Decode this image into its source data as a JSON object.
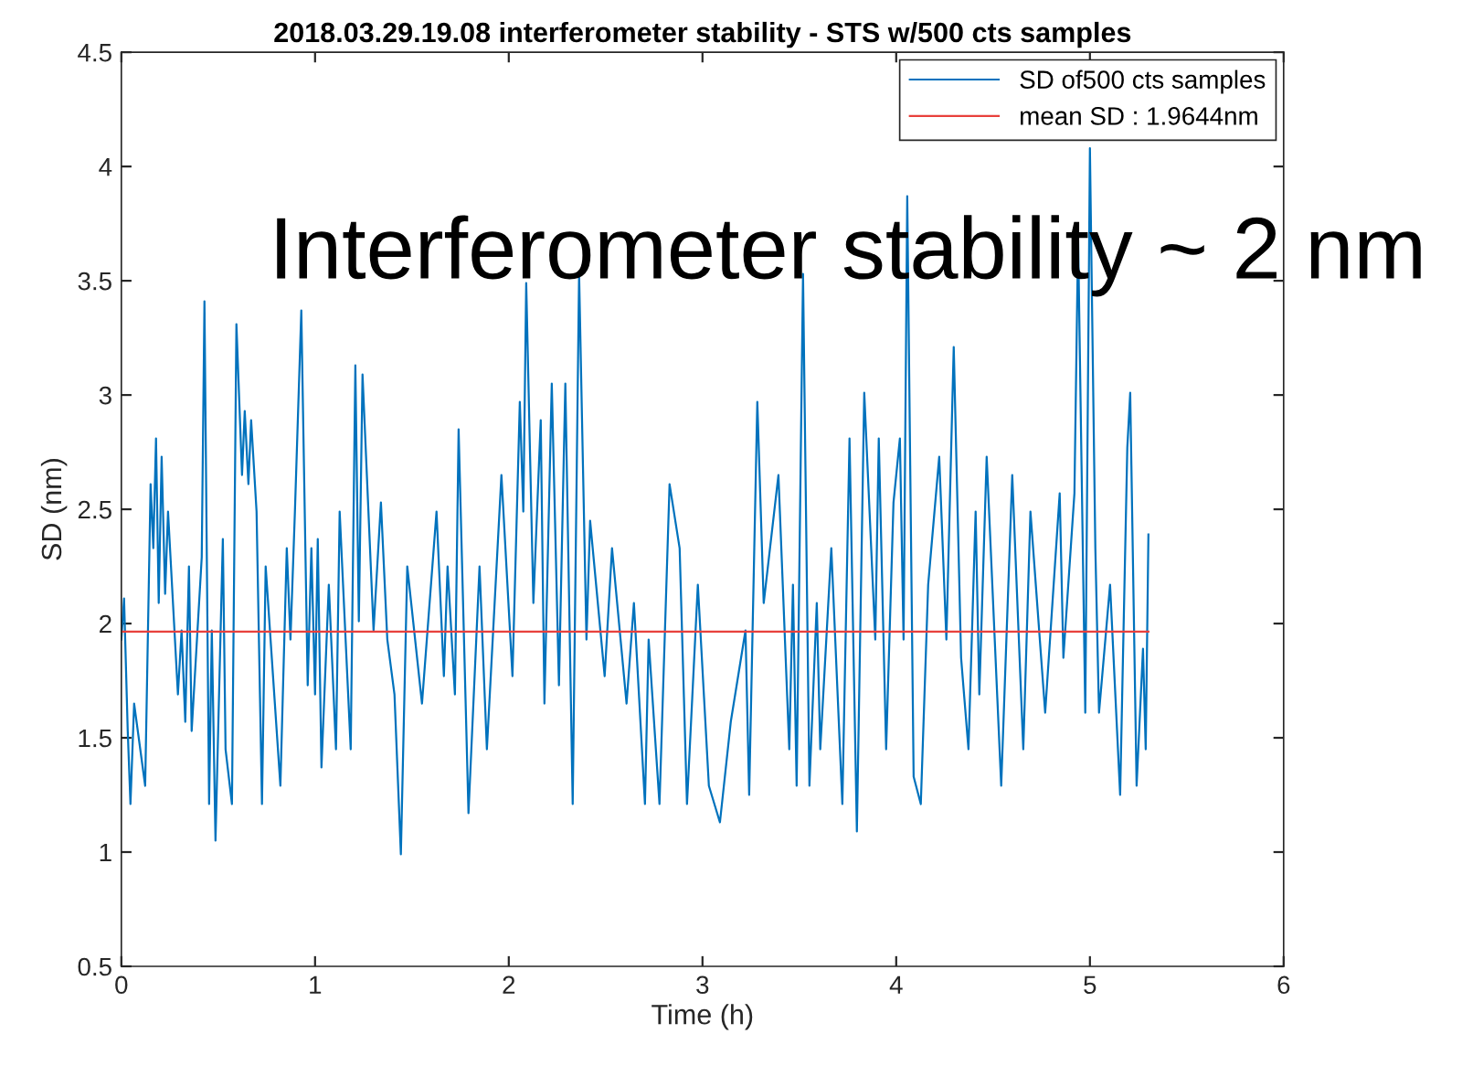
{
  "chart_data": {
    "type": "line",
    "title": "2018.03.29.19.08 interferometer stability - STS w/500 cts samples",
    "xlabel": "Time (h)",
    "ylabel": "SD (nm)",
    "xlim": [
      0,
      6
    ],
    "ylim": [
      0.5,
      4.5
    ],
    "xticks": [
      0,
      1,
      2,
      3,
      4,
      5,
      6
    ],
    "yticks": [
      0.5,
      1,
      1.5,
      2,
      2.5,
      3,
      3.5,
      4,
      4.5
    ],
    "legend": "top right",
    "annotations": [
      "Interferometer stability ~ 2 nm"
    ],
    "series": [
      {
        "name": "SD of500 cts samples",
        "color": "#0072bd",
        "x": [
          0,
          0.014,
          0.033,
          0.047,
          0.066,
          0.123,
          0.151,
          0.165,
          0.179,
          0.193,
          0.208,
          0.226,
          0.241,
          0.292,
          0.311,
          0.33,
          0.349,
          0.363,
          0.415,
          0.429,
          0.453,
          0.467,
          0.486,
          0.524,
          0.538,
          0.571,
          0.594,
          0.623,
          0.637,
          0.656,
          0.67,
          0.698,
          0.726,
          0.745,
          0.821,
          0.854,
          0.873,
          0.896,
          0.929,
          0.962,
          0.981,
          1.0,
          1.014,
          1.033,
          1.071,
          1.108,
          1.127,
          1.184,
          1.208,
          1.226,
          1.245,
          1.302,
          1.34,
          1.373,
          1.41,
          1.443,
          1.476,
          1.552,
          1.627,
          1.665,
          1.684,
          1.722,
          1.741,
          1.792,
          1.849,
          1.887,
          1.962,
          2.019,
          2.057,
          2.075,
          2.09,
          2.127,
          2.165,
          2.184,
          2.222,
          2.259,
          2.292,
          2.33,
          2.363,
          2.401,
          2.42,
          2.495,
          2.533,
          2.608,
          2.646,
          2.703,
          2.722,
          2.778,
          2.83,
          2.882,
          2.92,
          2.976,
          3.033,
          3.09,
          3.146,
          3.222,
          3.241,
          3.283,
          3.316,
          3.392,
          3.448,
          3.467,
          3.486,
          3.519,
          3.552,
          3.59,
          3.608,
          3.665,
          3.722,
          3.759,
          3.797,
          3.835,
          3.892,
          3.91,
          3.948,
          3.986,
          4.019,
          4.038,
          4.057,
          4.09,
          4.127,
          4.165,
          4.222,
          4.259,
          4.297,
          4.335,
          4.373,
          4.41,
          4.429,
          4.467,
          4.542,
          4.599,
          4.656,
          4.693,
          4.769,
          4.844,
          4.863,
          4.92,
          4.939,
          4.976,
          5.0,
          5.028,
          5.047,
          5.104,
          5.156,
          5.193,
          5.208,
          5.241,
          5.274,
          5.288,
          5.302
        ],
        "values": [
          1.93,
          2.11,
          1.53,
          1.21,
          1.65,
          1.29,
          2.61,
          2.33,
          2.81,
          2.09,
          2.73,
          2.13,
          2.49,
          1.69,
          1.97,
          1.57,
          2.25,
          1.53,
          2.29,
          3.41,
          1.21,
          1.97,
          1.05,
          2.37,
          1.45,
          1.21,
          3.31,
          2.65,
          2.93,
          2.61,
          2.89,
          2.49,
          1.21,
          2.25,
          1.29,
          2.33,
          1.93,
          2.49,
          3.37,
          1.73,
          2.33,
          1.69,
          2.37,
          1.37,
          2.17,
          1.45,
          2.49,
          1.45,
          3.13,
          2.01,
          3.09,
          1.97,
          2.53,
          1.93,
          1.69,
          0.99,
          2.25,
          1.65,
          2.49,
          1.77,
          2.25,
          1.69,
          2.85,
          1.17,
          2.25,
          1.45,
          2.65,
          1.77,
          2.97,
          2.49,
          3.49,
          2.09,
          2.89,
          1.65,
          3.05,
          1.73,
          3.05,
          1.21,
          3.53,
          1.93,
          2.45,
          1.77,
          2.33,
          1.65,
          2.09,
          1.21,
          1.93,
          1.21,
          2.61,
          2.33,
          1.21,
          2.17,
          1.29,
          1.13,
          1.57,
          1.97,
          1.25,
          2.97,
          2.09,
          2.65,
          1.45,
          2.17,
          1.29,
          3.53,
          1.29,
          2.09,
          1.45,
          2.33,
          1.21,
          2.81,
          1.09,
          3.01,
          1.93,
          2.81,
          1.45,
          2.53,
          2.81,
          1.93,
          3.87,
          1.33,
          1.21,
          2.17,
          2.73,
          1.93,
          3.21,
          1.85,
          1.45,
          2.49,
          1.69,
          2.73,
          1.29,
          2.65,
          1.45,
          2.49,
          1.61,
          2.57,
          1.85,
          2.57,
          3.69,
          1.61,
          4.08,
          2.33,
          1.61,
          2.17,
          1.25,
          2.77,
          3.01,
          1.29,
          1.89,
          1.45,
          2.39
        ]
      },
      {
        "name": "mean SD : 1.9644nm",
        "color": "#e8413c",
        "x": [
          0,
          5.302
        ],
        "values": [
          1.9644,
          1.9644
        ]
      }
    ]
  }
}
